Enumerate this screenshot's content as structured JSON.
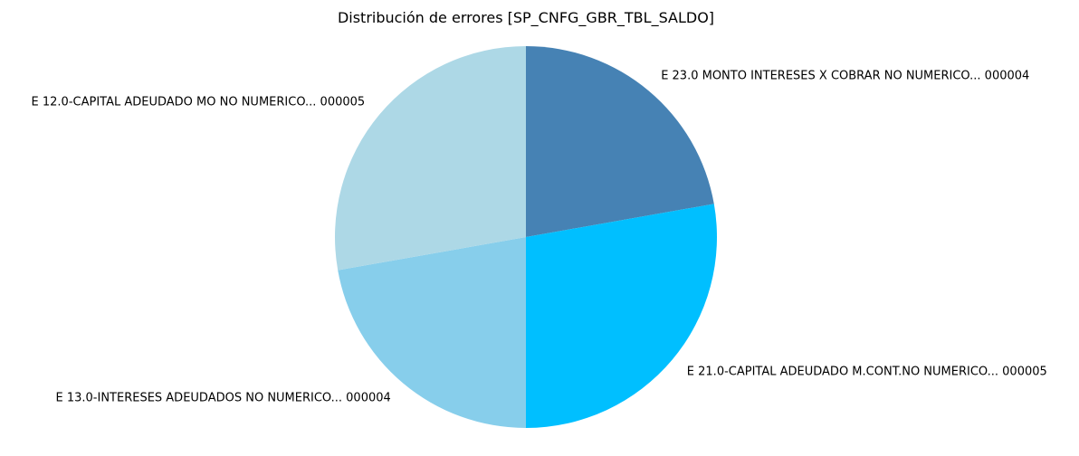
{
  "chart_data": {
    "type": "pie",
    "title": "Distribución de errores [SP_CNFG_GBR_TBL_SALDO]",
    "start_angle_deg": 90,
    "direction": "clockwise",
    "slices": [
      {
        "label": "E 23.0 MONTO INTERESES X COBRAR NO NUMERICO... 000004",
        "value": 4,
        "color": "#4682B4"
      },
      {
        "label": "E 21.0-CAPITAL ADEUDADO M.CONT.NO NUMERICO... 000005",
        "value": 5,
        "color": "#00BFFF"
      },
      {
        "label": "E 13.0-INTERESES ADEUDADOS NO NUMERICO... 000004",
        "value": 4,
        "color": "#87CEEB"
      },
      {
        "label": "E 12.0-CAPITAL ADEUDADO MO NO NUMERICO... 000005",
        "value": 5,
        "color": "#ADD8E6"
      }
    ]
  }
}
